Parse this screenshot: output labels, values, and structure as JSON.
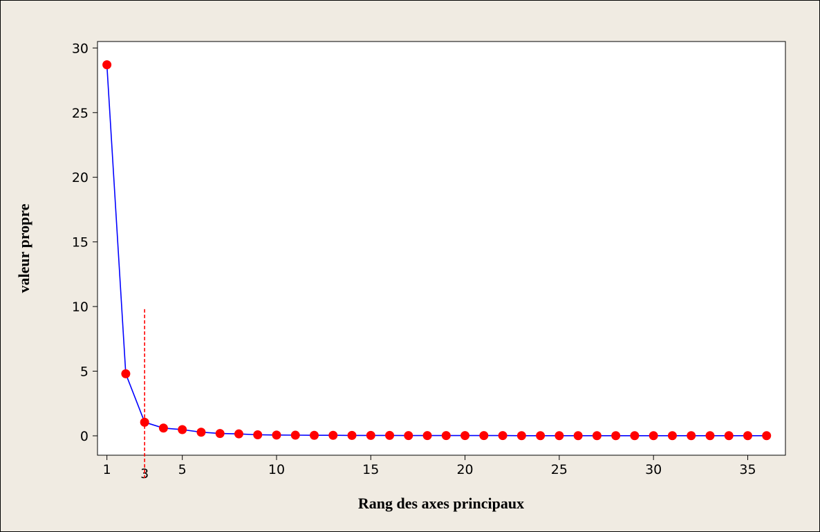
{
  "chart_data": {
    "type": "line",
    "xlabel": "Rang des axes principaux",
    "ylabel": "valeur propre",
    "xlim": [
      0.5,
      37
    ],
    "ylim": [
      -1.5,
      30.5
    ],
    "x_ticks": [
      1,
      3,
      5,
      10,
      15,
      20,
      25,
      30,
      35
    ],
    "y_ticks": [
      0,
      5,
      10,
      15,
      20,
      25,
      30
    ],
    "x": [
      1,
      2,
      3,
      4,
      5,
      6,
      7,
      8,
      9,
      10,
      11,
      12,
      13,
      14,
      15,
      16,
      17,
      18,
      19,
      20,
      21,
      22,
      23,
      24,
      25,
      26,
      27,
      28,
      29,
      30,
      31,
      32,
      33,
      34,
      35,
      36
    ],
    "values": [
      28.7,
      4.8,
      1.05,
      0.6,
      0.48,
      0.28,
      0.18,
      0.15,
      0.08,
      0.06,
      0.05,
      0.04,
      0.04,
      0.03,
      0.03,
      0.03,
      0.02,
      0.02,
      0.02,
      0.02,
      0.02,
      0.02,
      0.01,
      0.01,
      0.01,
      0.01,
      0.01,
      0.01,
      0.01,
      0.01,
      0.01,
      0.01,
      0.01,
      0.01,
      0.01,
      0.01
    ],
    "cutoff": {
      "x": 3,
      "y_top": 9.8
    },
    "grid": false,
    "colors": {
      "line": "#0000ff",
      "marker": "#ff0000",
      "cutoff": "#ff0000",
      "background": "#f0ebe2",
      "plot_area": "#ffffff"
    }
  }
}
